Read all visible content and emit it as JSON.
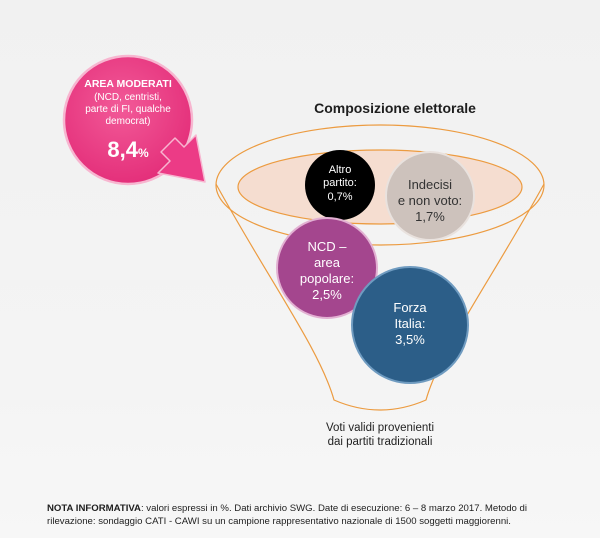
{
  "moderati": {
    "title": "AREA MODERATI",
    "desc_lines": [
      "(NCD, centristi,",
      "parte di FI, qualche",
      "democrat)"
    ],
    "value": "8,4",
    "unit": "%"
  },
  "title": "Composizione elettorale",
  "segments": [
    {
      "label_lines": [
        "Altro",
        "partito:",
        "0,7%"
      ],
      "value": 0.7,
      "color": "#000000"
    },
    {
      "label_lines": [
        "Indecisi",
        "e non voto:",
        "1,7%"
      ],
      "value": 1.7,
      "color": "#cdc2bc"
    },
    {
      "label_lines": [
        "NCD –",
        "area",
        "popolare:",
        "2,5%"
      ],
      "value": 2.5,
      "color": "#a4468e"
    },
    {
      "label_lines": [
        "Forza",
        "Italia:",
        "3,5%"
      ],
      "value": 3.5,
      "color": "#2c5e88"
    }
  ],
  "funnel_caption_lines": [
    "Voti validi provenienti",
    "dai partiti tradizionali"
  ],
  "note": {
    "bold": "NOTA INFORMATIVA",
    "text": ": valori espressi in %. Dati archivio SWG. Date di esecuzione: 6 – 8 marzo 2017. Metodo di rilevazione: sondaggio CATI - CAWI su un campione rappresentativo nazionale di 1500 soggetti maggiorenni."
  },
  "colors": {
    "moderati_circle": "#ec3b86",
    "arrow": "#ec3b86",
    "funnel_stroke": "#ec9b40",
    "funnel_fill": "#f5ddd0"
  }
}
